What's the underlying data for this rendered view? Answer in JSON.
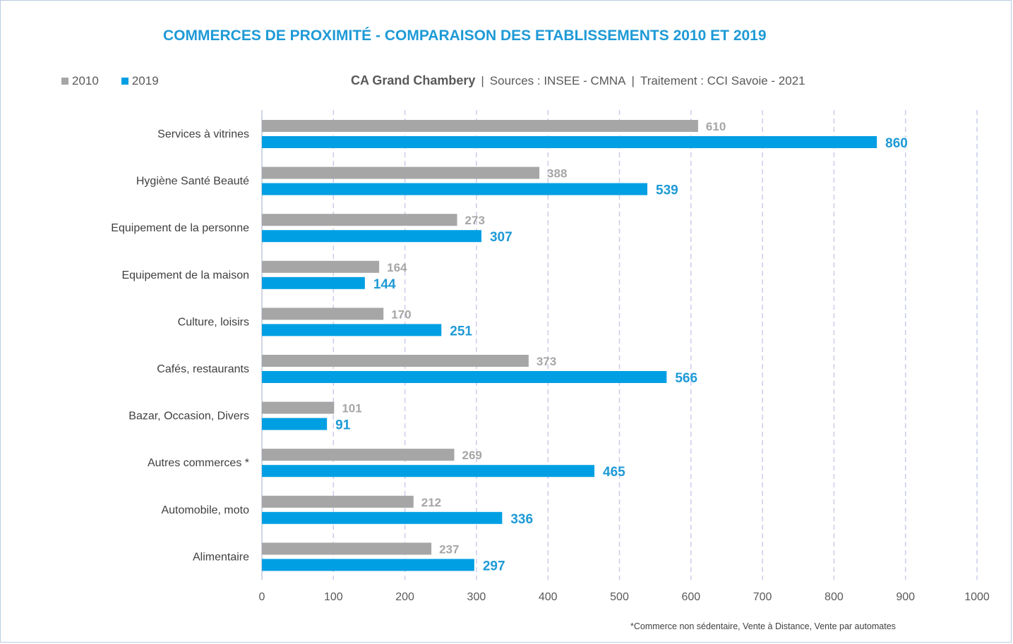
{
  "colors": {
    "s2010": "#a6a6a6",
    "s2019": "#009fe3",
    "grid": "#c9cdea",
    "title": "#1e9ad6",
    "label2019": "#1e9ad6"
  },
  "header": {
    "title": "COMMERCES DE PROXIMITÉ - COMPARAISON DES ETABLISSEMENTS 2010 ET 2019",
    "territory": "CA Grand Chambery",
    "sources": "Sources : INSEE - CMNA",
    "processing": "Traitement : CCI Savoie - 2021",
    "separator": "|"
  },
  "footnote": "*Commerce non sédentaire, Vente à Distance, Vente par automates",
  "chart_data": {
    "type": "bar",
    "orientation": "horizontal",
    "title": "COMMERCES DE PROXIMITÉ - COMPARAISON DES ETABLISSEMENTS 2010 ET 2019",
    "xlabel": "",
    "ylabel": "",
    "xlim": [
      0,
      1000
    ],
    "xticks": [
      0,
      100,
      200,
      300,
      400,
      500,
      600,
      700,
      800,
      900,
      1000
    ],
    "grid": true,
    "legend_position": "top-left",
    "categories": [
      "Services à vitrines",
      "Hygiène Santé Beauté",
      "Equipement de la personne",
      "Equipement de la maison",
      "Culture, loisirs",
      "Cafés, restaurants",
      "Bazar, Occasion, Divers",
      "Autres commerces *",
      "Automobile, moto",
      "Alimentaire"
    ],
    "series": [
      {
        "name": "2010",
        "values": [
          610,
          388,
          273,
          164,
          170,
          373,
          101,
          269,
          212,
          237
        ]
      },
      {
        "name": "2019",
        "values": [
          860,
          539,
          307,
          144,
          251,
          566,
          91,
          465,
          336,
          297
        ]
      }
    ]
  }
}
